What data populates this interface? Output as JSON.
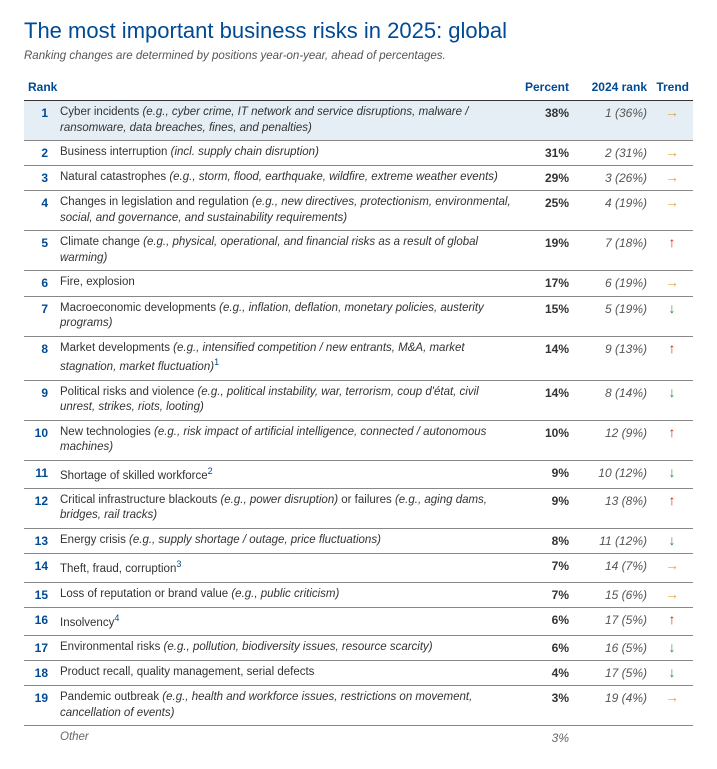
{
  "title": "The most important business risks in 2025: global",
  "subtitle": "Ranking changes are determined by positions year-on-year, ahead of percentages.",
  "header": {
    "rank": "Rank",
    "percent": "Percent",
    "prev": "2024 rank",
    "trend": "Trend"
  },
  "rows": [
    {
      "rank": "1",
      "name": "Cyber incidents",
      "example": "(e.g., cyber crime, IT network and service disruptions, malware / ransomware, data breaches, fines, and penalties)",
      "pct": "38%",
      "prev": "1 (36%)",
      "trend": "flat",
      "highlight": true
    },
    {
      "rank": "2",
      "name": "Business interruption",
      "example": "(incl. supply chain disruption)",
      "pct": "31%",
      "prev": "2 (31%)",
      "trend": "flat"
    },
    {
      "rank": "3",
      "name": "Natural catastrophes",
      "example": "(e.g., storm, flood, earthquake, wildfire, extreme weather events)",
      "pct": "29%",
      "prev": "3 (26%)",
      "trend": "flat"
    },
    {
      "rank": "4",
      "name": "Changes in legislation and regulation",
      "example": "(e.g., new directives, protectionism, environmental, social, and governance, and sustainability requirements)",
      "pct": "25%",
      "prev": "4 (19%)",
      "trend": "flat"
    },
    {
      "rank": "5",
      "name": "Climate change",
      "example": "(e.g., physical, operational, and financial risks as a result of global warming)",
      "pct": "19%",
      "prev": "7 (18%)",
      "trend": "up"
    },
    {
      "rank": "6",
      "name": "Fire, explosion",
      "example": "",
      "pct": "17%",
      "prev": "6 (19%)",
      "trend": "flat"
    },
    {
      "rank": "7",
      "name": "Macroeconomic developments",
      "example": "(e.g., inflation, deflation, monetary policies, austerity programs)",
      "pct": "15%",
      "prev": "5 (19%)",
      "trend": "down"
    },
    {
      "rank": "8",
      "name": "Market developments",
      "example": "(e.g., intensified competition / new entrants, M&A, market stagnation, market fluctuation)",
      "sup": "1",
      "pct": "14%",
      "prev": "9 (13%)",
      "trend": "up"
    },
    {
      "rank": "9",
      "name": "Political risks and violence",
      "example": "(e.g., political instability, war, terrorism, coup d'état, civil unrest, strikes, riots, looting)",
      "pct": "14%",
      "prev": "8 (14%)",
      "trend": "down"
    },
    {
      "rank": "10",
      "name": "New technologies",
      "example": "(e.g., risk impact of artificial intelligence, connected / autonomous machines)",
      "pct": "10%",
      "prev": "12 (9%)",
      "trend": "up"
    },
    {
      "rank": "11",
      "name": "Shortage of skilled workforce",
      "example": "",
      "sup": "2",
      "pct": "9%",
      "prev": "10 (12%)",
      "trend": "down"
    },
    {
      "rank": "12",
      "name": "Critical infrastructure blackouts",
      "example": "(e.g., power disruption)",
      "tail": " or failures ",
      "example2": "(e.g., aging dams, bridges, rail tracks)",
      "pct": "9%",
      "prev": "13 (8%)",
      "trend": "up"
    },
    {
      "rank": "13",
      "name": "Energy crisis",
      "example": "(e.g., supply shortage / outage, price fluctuations)",
      "pct": "8%",
      "prev": "11 (12%)",
      "trend": "down"
    },
    {
      "rank": "14",
      "name": "Theft, fraud, corruption",
      "example": "",
      "sup": "3",
      "pct": "7%",
      "prev": "14 (7%)",
      "trend": "flat"
    },
    {
      "rank": "15",
      "name": "Loss of reputation or brand value",
      "example": "(e.g., public criticism)",
      "pct": "7%",
      "prev": "15 (6%)",
      "trend": "flat"
    },
    {
      "rank": "16",
      "name": "Insolvency",
      "example": "",
      "sup": "4",
      "pct": "6%",
      "prev": "17 (5%)",
      "trend": "up"
    },
    {
      "rank": "17",
      "name": "Environmental risks",
      "example": "(e.g., pollution, biodiversity issues, resource scarcity)",
      "pct": "6%",
      "prev": "16 (5%)",
      "trend": "down"
    },
    {
      "rank": "18",
      "name": "Product recall, quality management, serial defects",
      "example": "",
      "pct": "4%",
      "prev": "17 (5%)",
      "trend": "down"
    },
    {
      "rank": "19",
      "name": "Pandemic outbreak",
      "example": "(e.g., health and workforce issues, restrictions on movement, cancellation of events)",
      "pct": "3%",
      "prev": "19 (4%)",
      "trend": "flat"
    }
  ],
  "other": {
    "label": "Other",
    "pct": "3%"
  },
  "trend_glyphs": {
    "up": "↑",
    "down": "↓",
    "flat": "→"
  },
  "colors": {
    "brand": "#004a93",
    "highlight_bg": "#e4eef4",
    "up": "#d42e12",
    "down": "#3a8a3a",
    "flat": "#e8a33d"
  }
}
